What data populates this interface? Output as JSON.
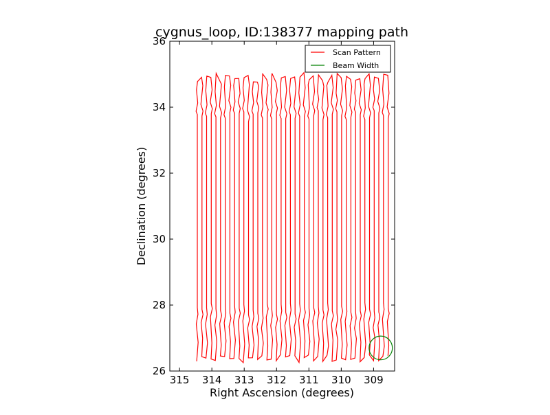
{
  "chart_data": {
    "type": "line",
    "title": "cygnus_loop, ID:138377 mapping path",
    "xlabel": "Right Ascension (degrees)",
    "ylabel": "Declination (degrees)",
    "xlim": [
      315.3,
      308.35
    ],
    "ylim": [
      26,
      36
    ],
    "x_inverted": true,
    "xticks": [
      315,
      314,
      313,
      312,
      311,
      310,
      309
    ],
    "yticks": [
      26,
      28,
      30,
      32,
      34,
      36
    ],
    "grid": false,
    "legend_position": "top-right",
    "series": [
      {
        "name": "Scan Pattern",
        "color": "#ff0000",
        "style": "boustrophedon vertical scan path",
        "ra_start": 314.45,
        "ra_end": 308.55,
        "num_legs": 42,
        "dec_min": 26.25,
        "dec_max": 35.05,
        "turn_zone_low": [
          26.3,
          27.9
        ],
        "turn_zone_high": [
          33.5,
          35.05
        ]
      },
      {
        "name": "Beam Width",
        "color": "#008000",
        "shape": "circle",
        "center_ra": 308.78,
        "center_dec": 26.7,
        "radius_deg": 0.36
      }
    ]
  }
}
